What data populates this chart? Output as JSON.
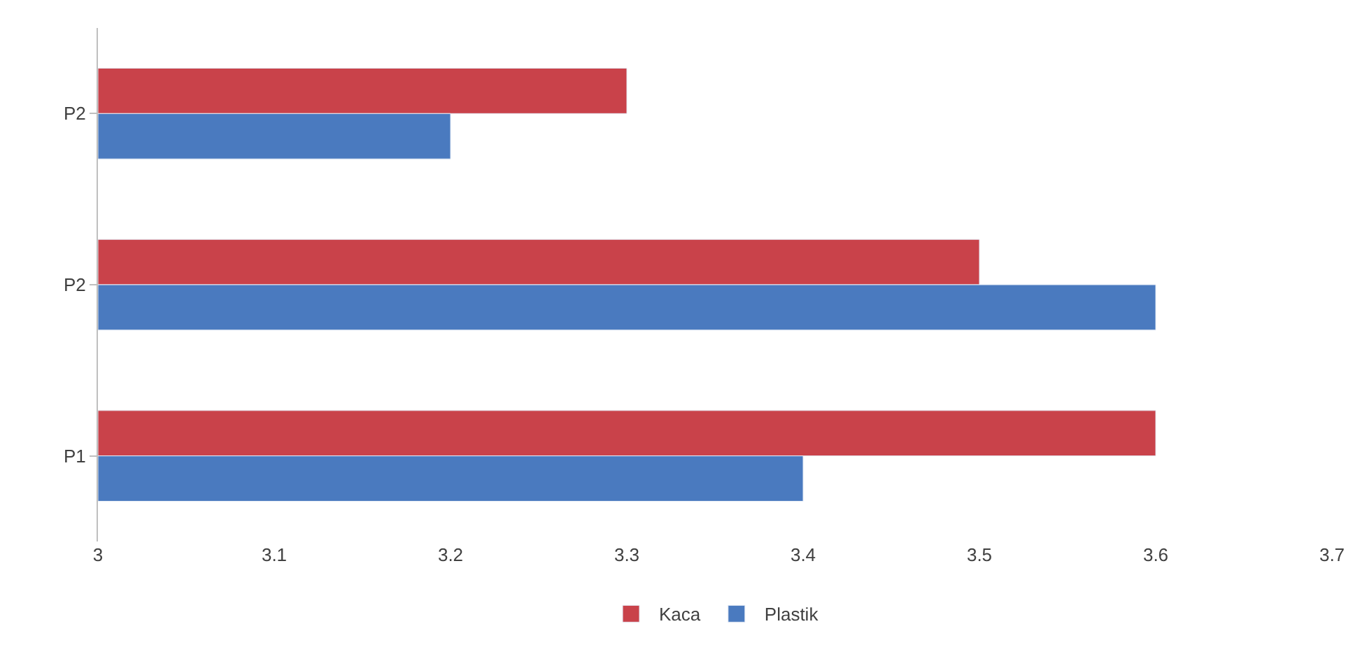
{
  "chart_data": {
    "type": "bar",
    "orientation": "horizontal",
    "categories": [
      "P2",
      "P2",
      "P1"
    ],
    "series": [
      {
        "name": "Kaca",
        "color": "#c9424a",
        "values": [
          3.3,
          3.5,
          3.6
        ]
      },
      {
        "name": "Plastik",
        "color": "#4a7abf",
        "values": [
          3.2,
          3.6,
          3.4
        ]
      }
    ],
    "xlim": [
      3,
      3.7
    ],
    "xticks": [
      3,
      3.1,
      3.2,
      3.3,
      3.4,
      3.5,
      3.6,
      3.7
    ],
    "legend": "bottom"
  }
}
